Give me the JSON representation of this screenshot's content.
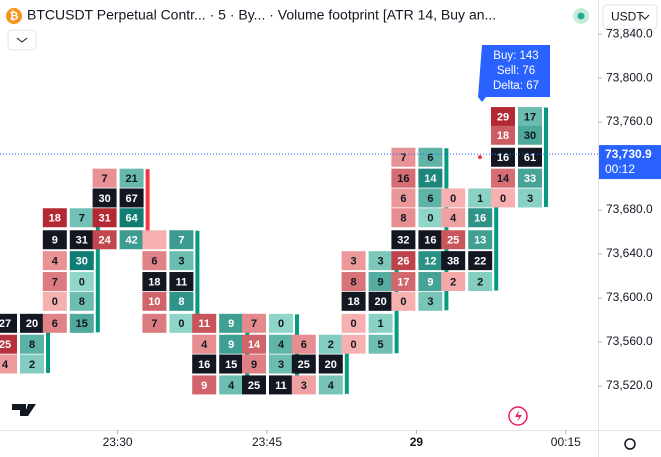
{
  "header": {
    "title": "BTCUSDT Perpetual Contr... · 5 · By... · Volume footprint [ATR 14, Buy an...",
    "currency": "USDT"
  },
  "chart_data": {
    "type": "footprint",
    "ylim": [
      73480,
      73871
    ],
    "yticks": [
      {
        "value": 73520,
        "label": "73,520.0"
      },
      {
        "value": 73560,
        "label": "73,560.0"
      },
      {
        "value": 73600,
        "label": "73,600.0"
      },
      {
        "value": 73640,
        "label": "73,640.0"
      },
      {
        "value": 73680,
        "label": "73,680.0"
      },
      {
        "value": 73760,
        "label": "73,760.0"
      },
      {
        "value": 73800,
        "label": "73,800.0"
      },
      {
        "value": 73840,
        "label": "73,840.0"
      }
    ],
    "xticks": [
      {
        "candle": 2,
        "label": "23:30"
      },
      {
        "candle": 5,
        "label": "23:45"
      },
      {
        "candle": 8,
        "label": "29"
      },
      {
        "candle": 11,
        "label": "00:15"
      }
    ],
    "last_price": {
      "value": 73730.9,
      "label": "73,730.9",
      "countdown": "00:12"
    },
    "sell_color": "#b22833",
    "buy_color": "#0b7a6f",
    "poc_color": "#131722",
    "candles": [
      {
        "color": "#089981",
        "prices": [
          73577,
          73558,
          73540
        ],
        "sell": [
          27,
          25,
          4
        ],
        "buy": [
          20,
          8,
          2
        ]
      },
      {
        "color": "#089981",
        "prices": [
          73673,
          73653,
          73634,
          73615,
          73597,
          73577
        ],
        "sell": [
          18,
          9,
          4,
          7,
          0,
          6
        ],
        "buy": [
          7,
          31,
          30,
          0,
          8,
          15
        ]
      },
      {
        "color": "#f23645",
        "prices": [
          73709,
          73691,
          73673,
          73653
        ],
        "sell": [
          7,
          30,
          31,
          24
        ],
        "buy": [
          21,
          67,
          64,
          42
        ]
      },
      {
        "color": "#089981",
        "prices": [
          73653,
          73634,
          73615,
          73597,
          73577
        ],
        "sell": [
          null,
          6,
          18,
          10,
          7
        ],
        "buy": [
          7,
          3,
          11,
          8,
          0
        ]
      },
      {
        "color": "#089981",
        "prices": [
          73577,
          73558,
          73540,
          73521
        ],
        "sell": [
          11,
          4,
          16,
          9
        ],
        "buy": [
          9,
          9,
          15,
          4
        ]
      },
      {
        "color": "#089981",
        "prices": [
          73577,
          73558,
          73540,
          73521
        ],
        "sell": [
          7,
          14,
          9,
          25
        ],
        "buy": [
          0,
          4,
          3,
          11
        ]
      },
      {
        "color": "#089981",
        "prices": [
          73558,
          73540,
          73521
        ],
        "sell": [
          6,
          25,
          3
        ],
        "buy": [
          2,
          20,
          4
        ]
      },
      {
        "color": "#089981",
        "prices": [
          73634,
          73615,
          73597,
          73577,
          73558
        ],
        "sell": [
          3,
          8,
          18,
          0,
          0
        ],
        "buy": [
          3,
          9,
          20,
          1,
          5
        ]
      },
      {
        "color": "#089981",
        "prices": [
          73728,
          73709,
          73691,
          73673,
          73653,
          73634,
          73615,
          73597
        ],
        "sell": [
          7,
          16,
          6,
          8,
          32,
          26,
          17,
          0
        ],
        "buy": [
          6,
          14,
          6,
          0,
          16,
          12,
          9,
          3
        ]
      },
      {
        "color": "#089981",
        "prices": [
          73691,
          73673,
          73653,
          73634,
          73615
        ],
        "sell": [
          0,
          4,
          25,
          38,
          2
        ],
        "buy": [
          1,
          16,
          13,
          22,
          2
        ]
      },
      {
        "color": "#089981",
        "prices": [
          73765,
          73748,
          73728,
          73709,
          73691
        ],
        "sell": [
          29,
          18,
          16,
          14,
          0
        ],
        "buy": [
          17,
          30,
          61,
          33,
          3
        ]
      }
    ],
    "tooltip": {
      "candle": 10,
      "lines": [
        "Buy: 143",
        "Sell: 76",
        "Delta: 67"
      ]
    }
  }
}
